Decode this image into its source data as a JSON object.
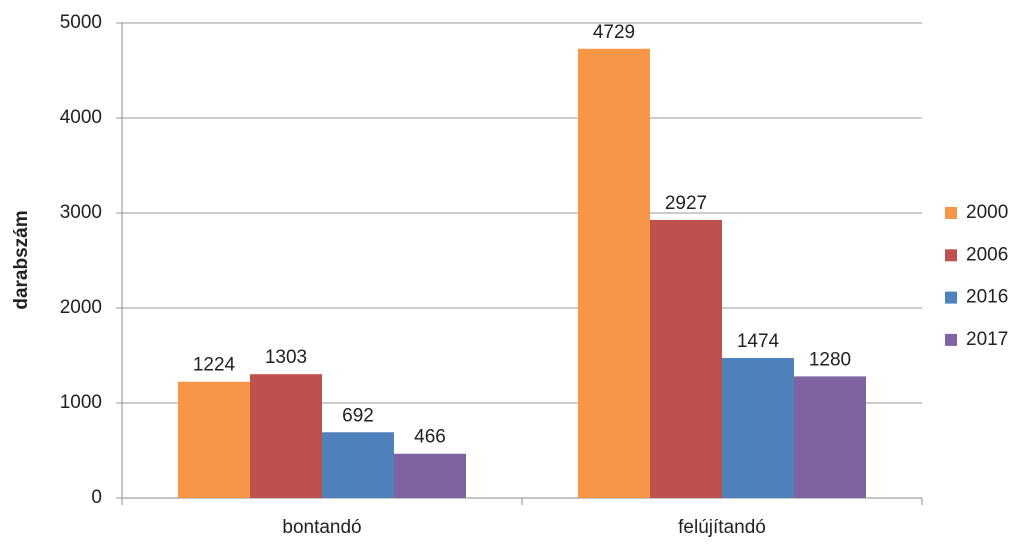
{
  "chart_data": {
    "type": "bar",
    "y_label": "darabszám",
    "categories": [
      "bontandó",
      "felújítandó"
    ],
    "series": [
      {
        "name": "2000",
        "color": "#f79646",
        "values": [
          1224,
          4729
        ]
      },
      {
        "name": "2006",
        "color": "#c0504d",
        "values": [
          1303,
          2927
        ]
      },
      {
        "name": "2016",
        "color": "#4f81bd",
        "values": [
          692,
          1474
        ]
      },
      {
        "name": "2017",
        "color": "#8064a2",
        "values": [
          466,
          1280
        ]
      }
    ],
    "ylim": [
      0,
      5000
    ],
    "yticks": [
      0,
      1000,
      2000,
      3000,
      4000,
      5000
    ],
    "grid": true,
    "legend": "right",
    "data_labels": true
  }
}
